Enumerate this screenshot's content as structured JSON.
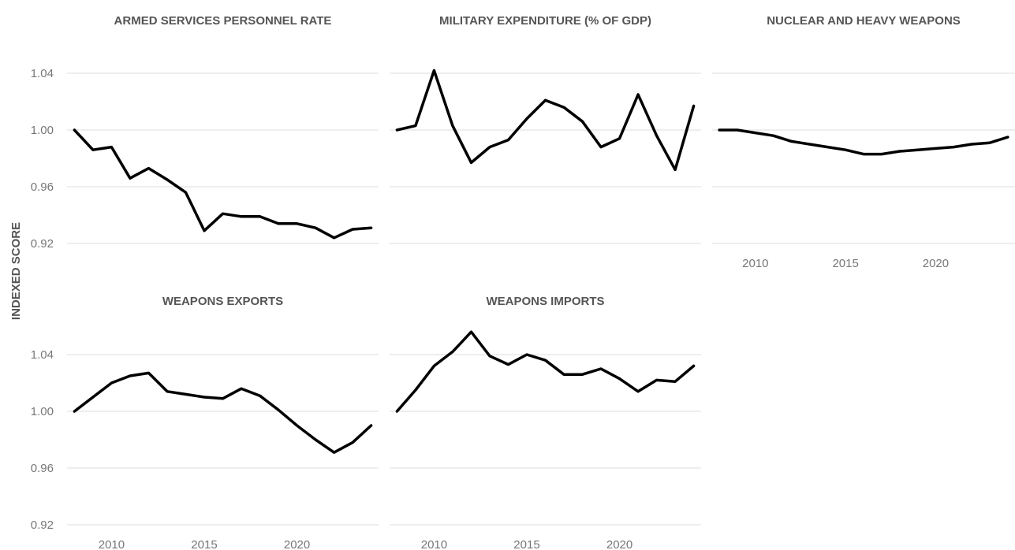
{
  "chart_data": {
    "type": "line",
    "ylabel": "INDEXED SCORE",
    "ylim": [
      0.915,
      1.065
    ],
    "xlim": [
      2007.6,
      2024.4
    ],
    "y_ticks": [
      1.04,
      1.0,
      0.96,
      0.92
    ],
    "y_tick_labels": [
      "1.04",
      "1.00",
      "0.96",
      "0.92"
    ],
    "x_ticks": [
      2010,
      2015,
      2020
    ],
    "x_tick_labels": [
      "2010",
      "2015",
      "2020"
    ],
    "grid": "horizontal",
    "facets": [
      {
        "title": "ARMED SERVICES PERSONNEL RATE",
        "x": [
          2008,
          2009,
          2010,
          2011,
          2012,
          2013,
          2014,
          2015,
          2016,
          2017,
          2018,
          2019,
          2020,
          2021,
          2022,
          2023,
          2024
        ],
        "values": [
          1.0,
          0.986,
          0.988,
          0.966,
          0.973,
          0.965,
          0.956,
          0.929,
          0.941,
          0.939,
          0.939,
          0.934,
          0.934,
          0.931,
          0.924,
          0.93,
          0.931
        ]
      },
      {
        "title": "MILITARY EXPENDITURE (% OF GDP)",
        "x": [
          2008,
          2009,
          2010,
          2011,
          2012,
          2013,
          2014,
          2015,
          2016,
          2017,
          2018,
          2019,
          2020,
          2021,
          2022,
          2023,
          2024
        ],
        "values": [
          1.0,
          1.003,
          1.042,
          1.003,
          0.977,
          0.988,
          0.993,
          1.008,
          1.021,
          1.016,
          1.006,
          0.988,
          0.994,
          1.025,
          0.996,
          0.972,
          1.017
        ]
      },
      {
        "title": "NUCLEAR AND HEAVY WEAPONS",
        "x": [
          2008,
          2009,
          2010,
          2011,
          2012,
          2013,
          2014,
          2015,
          2016,
          2017,
          2018,
          2019,
          2020,
          2021,
          2022,
          2023,
          2024
        ],
        "values": [
          1.0,
          1.0,
          0.998,
          0.996,
          0.992,
          0.99,
          0.988,
          0.986,
          0.983,
          0.983,
          0.985,
          0.986,
          0.987,
          0.988,
          0.99,
          0.991,
          0.995
        ]
      },
      {
        "title": "WEAPONS EXPORTS",
        "x": [
          2008,
          2009,
          2010,
          2011,
          2012,
          2013,
          2014,
          2015,
          2016,
          2017,
          2018,
          2019,
          2020,
          2021,
          2022,
          2023,
          2024
        ],
        "values": [
          1.0,
          1.01,
          1.02,
          1.025,
          1.027,
          1.014,
          1.012,
          1.01,
          1.009,
          1.016,
          1.011,
          1.001,
          0.99,
          0.98,
          0.971,
          0.978,
          0.99
        ]
      },
      {
        "title": "WEAPONS IMPORTS",
        "x": [
          2008,
          2009,
          2010,
          2011,
          2012,
          2013,
          2014,
          2015,
          2016,
          2017,
          2018,
          2019,
          2020,
          2021,
          2022,
          2023,
          2024
        ],
        "values": [
          1.0,
          1.015,
          1.032,
          1.042,
          1.056,
          1.039,
          1.033,
          1.04,
          1.036,
          1.026,
          1.026,
          1.03,
          1.023,
          1.014,
          1.022,
          1.021,
          1.032
        ]
      }
    ]
  }
}
